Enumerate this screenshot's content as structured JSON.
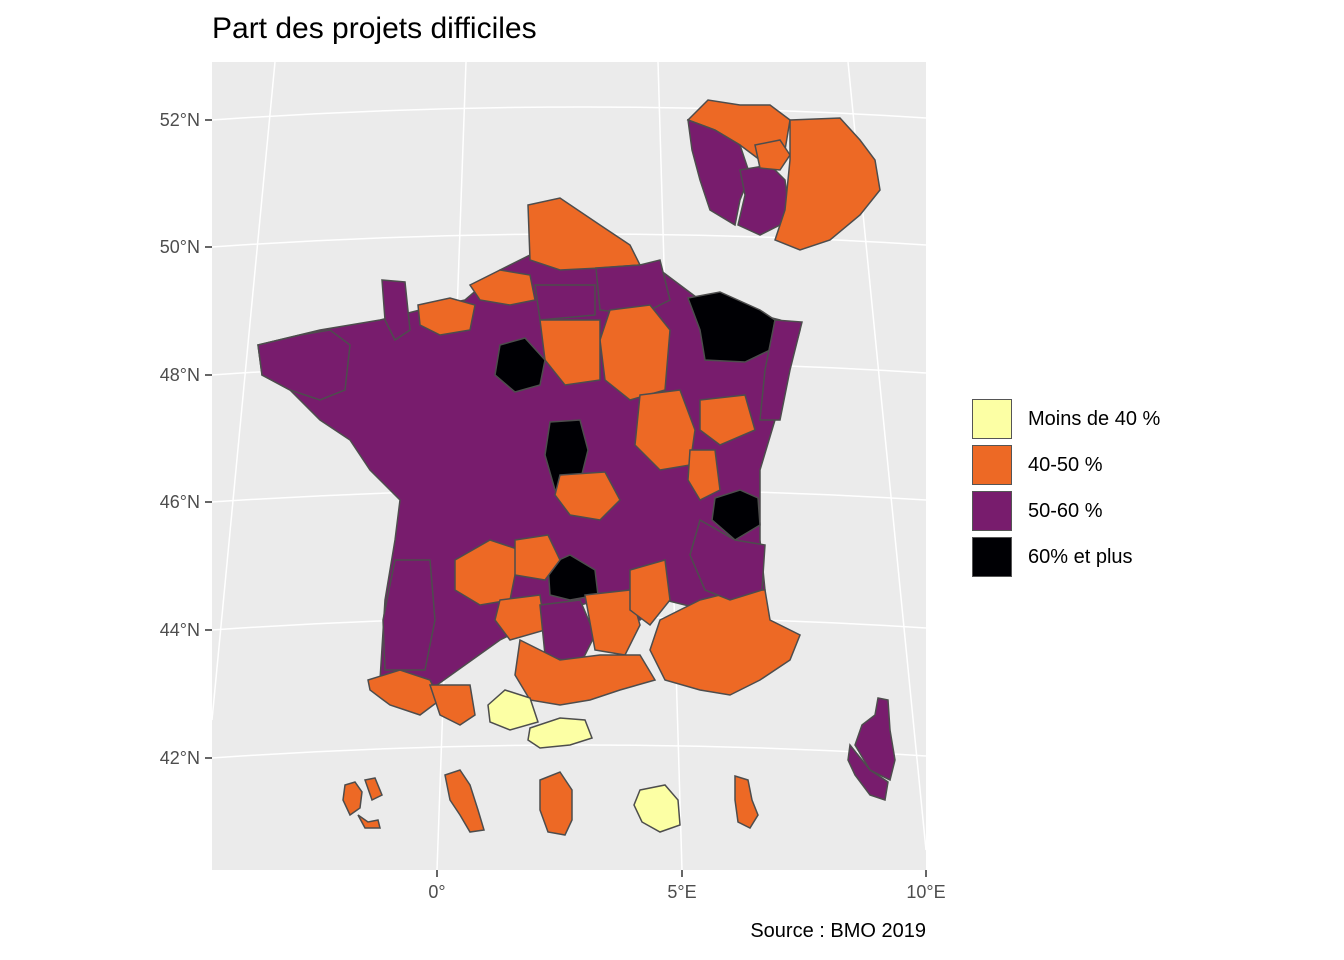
{
  "title": "Part des projets difficiles",
  "caption": "Source : BMO 2019",
  "colors": {
    "panel": "#EBEBEB",
    "grid": "#FFFFFF",
    "border": "#4D4D4D",
    "cat1": "#FCFFA4",
    "cat2": "#ED6925",
    "cat3": "#781C6D",
    "cat4": "#000004"
  },
  "axes": {
    "lat_ticks": [
      "52°N",
      "50°N",
      "48°N",
      "46°N",
      "44°N",
      "42°N"
    ],
    "lon_ticks": [
      "0°",
      "5°E",
      "10°E"
    ]
  },
  "legend": {
    "items": [
      {
        "label": "Moins de 40 %",
        "color": "#FCFFA4"
      },
      {
        "label": "40-50 %",
        "color": "#ED6925"
      },
      {
        "label": "50-60 %",
        "color": "#781C6D"
      },
      {
        "label": "60% et plus",
        "color": "#000004"
      }
    ]
  }
}
